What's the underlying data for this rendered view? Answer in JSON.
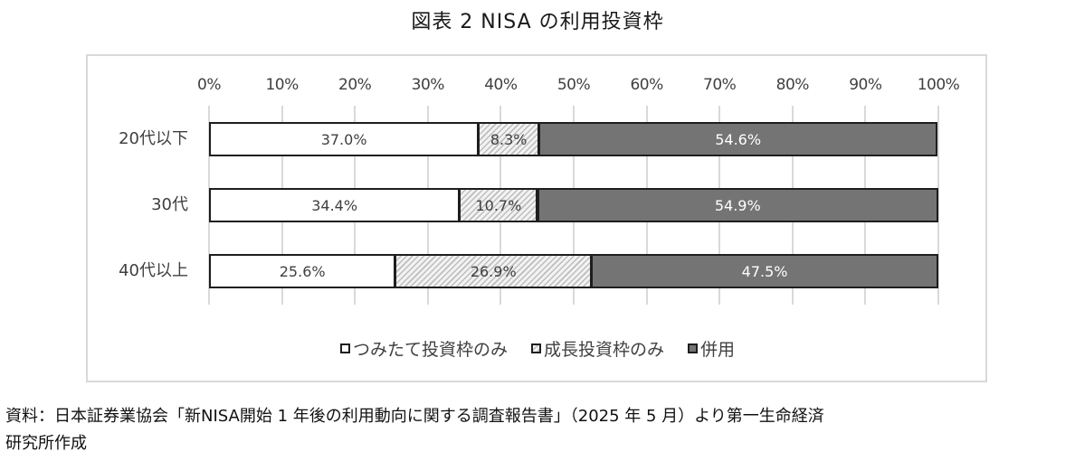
{
  "title": "図表 2  NISA の利用投資枠",
  "chart_data": {
    "type": "bar",
    "orientation": "horizontal",
    "stacked": "percent",
    "title": "図表 2  NISA の利用投資枠",
    "xlabel": "",
    "ylabel": "",
    "xlim": [
      0,
      100
    ],
    "x_ticks": [
      "0%",
      "10%",
      "20%",
      "30%",
      "40%",
      "50%",
      "60%",
      "70%",
      "80%",
      "90%",
      "100%"
    ],
    "categories": [
      "20代以下",
      "30代",
      "40代以上"
    ],
    "series": [
      {
        "name": "つみたて投資枠のみ",
        "values": [
          37.0,
          34.4,
          25.6
        ],
        "labels": [
          "37.0%",
          "34.4%",
          "25.6%"
        ],
        "color": "#ffffff"
      },
      {
        "name": "成長投資枠のみ",
        "values": [
          8.3,
          10.7,
          26.9
        ],
        "labels": [
          "8.3%",
          "10.7%",
          "26.9%"
        ],
        "color": "#d0d0d0",
        "pattern": "diagonal-hatch"
      },
      {
        "name": "併用",
        "values": [
          54.6,
          54.9,
          47.5
        ],
        "labels": [
          "54.6%",
          "54.9%",
          "47.5%"
        ],
        "color": "#747474"
      }
    ],
    "grid": true,
    "legend_position": "bottom"
  },
  "legend": [
    {
      "label": "つみたて投資枠のみ"
    },
    {
      "label": "成長投資枠のみ"
    },
    {
      "label": "併用"
    }
  ],
  "source": {
    "line1": "資料：日本証券業協会「新NISA開始 1 年後の利用動向に関する調査報告書」（2025 年 5 月）より第一生命経済",
    "line2": "研究所作成"
  }
}
